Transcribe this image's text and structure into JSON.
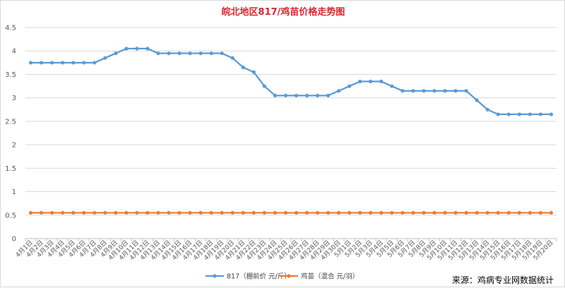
{
  "chart_data": {
    "type": "line",
    "title": "皖北地区817/鸡苗价格走势图",
    "source": "来源：鸡病专业网数据统计",
    "ylim": [
      0,
      4.5
    ],
    "yticks": [
      "0",
      "0.5",
      "1",
      "1.5",
      "2",
      "2.5",
      "3",
      "3.5",
      "4",
      "4.5"
    ],
    "grid": true,
    "legend_position": "bottom",
    "categories": [
      "4月1日",
      "4月2日",
      "4月3日",
      "4月4日",
      "4月5日",
      "4月6日",
      "4月7日",
      "4月8日",
      "4月9日",
      "4月10日",
      "4月11日",
      "4月12日",
      "4月13日",
      "4月14日",
      "4月15日",
      "4月16日",
      "4月17日",
      "4月18日",
      "4月19日",
      "4月20日",
      "4月21日",
      "4月22日",
      "4月23日",
      "4月24日",
      "4月25日",
      "4月26日",
      "4月27日",
      "4月28日",
      "4月29日",
      "4月30日",
      "5月1日",
      "5月2日",
      "5月3日",
      "5月4日",
      "5月5日",
      "5月6日",
      "5月7日",
      "5月8日",
      "5月9日",
      "5月10日",
      "5月11日",
      "5月12日",
      "5月13日",
      "5月14日",
      "5月15日",
      "5月16日",
      "5月17日",
      "5月18日",
      "5月19日",
      "5月20日"
    ],
    "series": [
      {
        "name": "817（棚前价 元/斤）",
        "color": "#5b9bd5",
        "values": [
          3.75,
          3.75,
          3.75,
          3.75,
          3.75,
          3.75,
          3.75,
          3.85,
          3.95,
          4.05,
          4.05,
          4.05,
          3.95,
          3.95,
          3.95,
          3.95,
          3.95,
          3.95,
          3.95,
          3.85,
          3.65,
          3.55,
          3.25,
          3.05,
          3.05,
          3.05,
          3.05,
          3.05,
          3.05,
          3.15,
          3.25,
          3.35,
          3.35,
          3.35,
          3.25,
          3.15,
          3.15,
          3.15,
          3.15,
          3.15,
          3.15,
          3.15,
          2.95,
          2.75,
          2.65,
          2.65,
          2.65,
          2.65,
          2.65,
          2.65
        ]
      },
      {
        "name": "鸡苗（混合 元/羽）",
        "color": "#ed7d31",
        "values": [
          0.55,
          0.55,
          0.55,
          0.55,
          0.55,
          0.55,
          0.55,
          0.55,
          0.55,
          0.55,
          0.55,
          0.55,
          0.55,
          0.55,
          0.55,
          0.55,
          0.55,
          0.55,
          0.55,
          0.55,
          0.55,
          0.55,
          0.55,
          0.55,
          0.55,
          0.55,
          0.55,
          0.55,
          0.55,
          0.55,
          0.55,
          0.55,
          0.55,
          0.55,
          0.55,
          0.55,
          0.55,
          0.55,
          0.55,
          0.55,
          0.55,
          0.55,
          0.55,
          0.55,
          0.55,
          0.55,
          0.55,
          0.55,
          0.55,
          0.55
        ]
      }
    ]
  }
}
